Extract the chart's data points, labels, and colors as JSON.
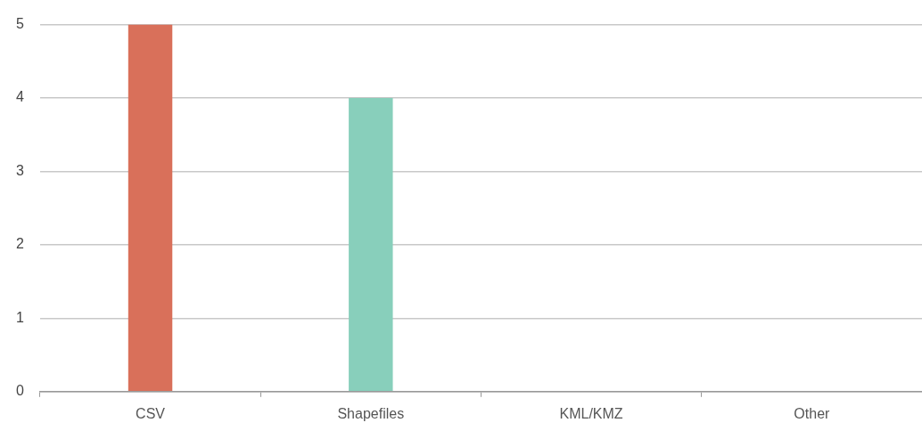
{
  "chart_data": {
    "type": "bar",
    "categories": [
      "CSV",
      "Shapefiles",
      "KML/KMZ",
      "Other"
    ],
    "values": [
      5,
      4,
      0,
      0
    ],
    "colors": [
      "#d9705a",
      "#88cfbb",
      "#d9705a",
      "#88cfbb"
    ],
    "ylim": [
      0,
      5
    ],
    "yticks": [
      0,
      1,
      2,
      3,
      4,
      5
    ],
    "grid": "y",
    "legend": false
  }
}
